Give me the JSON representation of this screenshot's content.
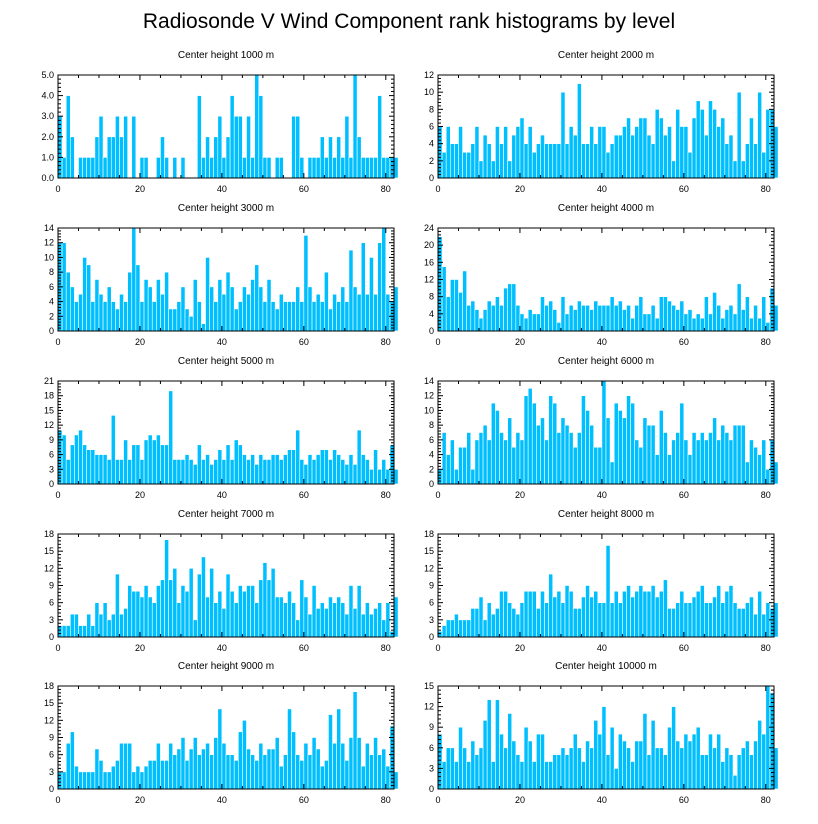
{
  "title": "Radiosonde V Wind Component rank histograms by level",
  "chart_data": [
    {
      "type": "bar",
      "title": "Center height 1000 m",
      "x": "0..82",
      "xticks": [
        0,
        20,
        40,
        60,
        80
      ],
      "xlim": [
        0,
        82
      ],
      "yticks": [
        "0.0",
        "1.0",
        "2.0",
        "3.0",
        "4.0",
        "5.0"
      ],
      "ylim": [
        0,
        5
      ],
      "values": [
        3,
        1,
        4,
        2,
        0,
        1,
        1,
        1,
        1,
        2,
        3,
        1,
        2,
        2,
        3,
        2,
        3,
        0,
        3,
        0,
        1,
        1,
        0,
        0,
        1,
        2,
        1,
        0,
        1,
        0,
        1,
        0,
        0,
        0,
        4,
        1,
        2,
        1,
        2,
        3,
        1,
        2,
        4,
        3,
        3,
        1,
        3,
        1,
        5,
        4,
        1,
        1,
        0,
        1,
        1,
        0,
        0,
        3,
        3,
        1,
        0,
        1,
        1,
        1,
        2,
        1,
        2,
        1,
        2,
        1,
        3,
        1,
        5,
        2,
        1,
        1,
        1,
        1,
        4,
        1,
        1,
        1,
        1
      ]
    },
    {
      "type": "bar",
      "title": "Center height 2000 m",
      "xticks": [
        0,
        20,
        40,
        60,
        80
      ],
      "xlim": [
        0,
        82
      ],
      "yticks": [
        "0",
        "2",
        "4",
        "6",
        "8",
        "10",
        "12"
      ],
      "ylim": [
        0,
        12
      ],
      "values": [
        6,
        3,
        6,
        4,
        4,
        6,
        3,
        3,
        4,
        6,
        2,
        5,
        4,
        2,
        6,
        4,
        6,
        2,
        5,
        6,
        7,
        4,
        6,
        3,
        4,
        5,
        4,
        4,
        4,
        4,
        10,
        4,
        6,
        5,
        11,
        4,
        4,
        6,
        4,
        6,
        6,
        3,
        4,
        5,
        5,
        6,
        7,
        5,
        6,
        7,
        7,
        5,
        4,
        8,
        7,
        5,
        6,
        2,
        8,
        6,
        6,
        3,
        7,
        9,
        8,
        5,
        9,
        8,
        6,
        7,
        4,
        5,
        2,
        10,
        2,
        4,
        7,
        4,
        10,
        3,
        8,
        8,
        6
      ]
    },
    {
      "type": "bar",
      "title": "Center height 3000 m",
      "xticks": [
        0,
        20,
        40,
        60,
        80
      ],
      "xlim": [
        0,
        82
      ],
      "yticks": [
        "0",
        "2",
        "4",
        "6",
        "8",
        "10",
        "12",
        "14"
      ],
      "ylim": [
        0,
        14
      ],
      "values": [
        12,
        12,
        8,
        6,
        4,
        5,
        10,
        9,
        4,
        7,
        5,
        4,
        6,
        4,
        3,
        5,
        4,
        8,
        14,
        9,
        4,
        7,
        6,
        4,
        7,
        5,
        8,
        3,
        3,
        4,
        6,
        3,
        2,
        7,
        4,
        1,
        10,
        6,
        4,
        7,
        5,
        8,
        6,
        3,
        4,
        6,
        5,
        7,
        9,
        6,
        4,
        7,
        4,
        3,
        5,
        4,
        4,
        4,
        6,
        4,
        13,
        6,
        4,
        5,
        4,
        8,
        3,
        5,
        4,
        6,
        4,
        11,
        6,
        5,
        12,
        5,
        10,
        5,
        12,
        14,
        5,
        4,
        6
      ]
    },
    {
      "type": "bar",
      "title": "Center height 4000 m",
      "xticks": [
        0,
        20,
        40,
        60,
        80
      ],
      "xlim": [
        0,
        82
      ],
      "yticks": [
        "0",
        "4",
        "8",
        "12",
        "16",
        "20",
        "24"
      ],
      "ylim": [
        0,
        24
      ],
      "values": [
        22,
        15,
        8,
        12,
        12,
        9,
        14,
        6,
        7,
        5,
        3,
        5,
        7,
        6,
        8,
        6,
        10,
        11,
        11,
        6,
        4,
        3,
        5,
        4,
        4,
        8,
        6,
        7,
        5,
        2,
        8,
        4,
        6,
        5,
        7,
        6,
        6,
        5,
        7,
        6,
        6,
        6,
        8,
        6,
        7,
        5,
        6,
        3,
        6,
        8,
        4,
        4,
        6,
        3,
        8,
        8,
        7,
        6,
        5,
        7,
        4,
        5,
        3,
        4,
        3,
        8,
        4,
        9,
        6,
        3,
        5,
        6,
        4,
        11,
        5,
        8,
        3,
        6,
        3,
        8,
        2,
        10,
        6
      ]
    },
    {
      "type": "bar",
      "title": "Center height 5000 m",
      "xticks": [
        0,
        20,
        40,
        60,
        80
      ],
      "xlim": [
        0,
        82
      ],
      "yticks": [
        "0",
        "3",
        "6",
        "9",
        "12",
        "15",
        "18",
        "21"
      ],
      "ylim": [
        0,
        21
      ],
      "values": [
        11,
        10,
        5,
        8,
        10,
        11,
        8,
        7,
        7,
        6,
        6,
        6,
        5,
        14,
        5,
        5,
        9,
        5,
        8,
        8,
        5,
        9,
        10,
        9,
        10,
        8,
        8,
        19,
        5,
        5,
        5,
        6,
        5,
        4,
        8,
        5,
        6,
        4,
        5,
        7,
        5,
        8,
        5,
        9,
        8,
        6,
        5,
        6,
        4,
        6,
        5,
        5,
        6,
        6,
        5,
        6,
        7,
        7,
        11,
        5,
        4,
        6,
        5,
        6,
        7,
        7,
        5,
        7,
        6,
        5,
        4,
        6,
        4,
        11,
        6,
        5,
        3,
        7,
        3,
        5,
        3,
        8,
        3
      ]
    },
    {
      "type": "bar",
      "title": "Center height 6000 m",
      "xticks": [
        0,
        20,
        40,
        60,
        80
      ],
      "xlim": [
        0,
        82
      ],
      "yticks": [
        "0",
        "2",
        "4",
        "6",
        "8",
        "10",
        "12",
        "14"
      ],
      "ylim": [
        0,
        14
      ],
      "values": [
        2,
        7,
        4,
        6,
        2,
        5,
        5,
        7,
        2,
        6,
        7,
        8,
        6,
        11,
        10,
        7,
        6,
        9,
        5,
        7,
        6,
        12,
        13,
        11,
        8,
        9,
        6,
        12,
        11,
        7,
        9,
        8,
        7,
        5,
        7,
        12,
        10,
        8,
        5,
        5,
        14,
        9,
        3,
        11,
        10,
        9,
        12,
        11,
        6,
        5,
        9,
        8,
        8,
        4,
        10,
        7,
        4,
        6,
        7,
        11,
        6,
        4,
        7,
        6,
        7,
        6,
        7,
        9,
        6,
        8,
        7,
        6,
        8,
        8,
        8,
        3,
        6,
        5,
        4,
        6,
        2,
        6,
        3
      ]
    },
    {
      "type": "bar",
      "title": "Center height 7000 m",
      "xticks": [
        0,
        20,
        40,
        60,
        80
      ],
      "xlim": [
        0,
        82
      ],
      "yticks": [
        "0",
        "3",
        "6",
        "9",
        "12",
        "15",
        "18"
      ],
      "ylim": [
        0,
        18
      ],
      "values": [
        2,
        2,
        2,
        4,
        4,
        2,
        2,
        4,
        2,
        6,
        4,
        6,
        3,
        4,
        11,
        4,
        5,
        9,
        8,
        8,
        7,
        9,
        7,
        6,
        9,
        10,
        17,
        10,
        12,
        6,
        9,
        8,
        12,
        3,
        11,
        14,
        7,
        12,
        6,
        8,
        5,
        11,
        8,
        6,
        9,
        8,
        9,
        9,
        6,
        10,
        13,
        10,
        12,
        7,
        7,
        6,
        8,
        6,
        3,
        10,
        7,
        4,
        9,
        5,
        6,
        5,
        7,
        6,
        7,
        6,
        4,
        9,
        5,
        9,
        4,
        6,
        4,
        5,
        6,
        3,
        6,
        1,
        7
      ]
    },
    {
      "type": "bar",
      "title": "Center height 8000 m",
      "xticks": [
        0,
        20,
        40,
        60,
        80
      ],
      "xlim": [
        0,
        82
      ],
      "yticks": [
        "0",
        "3",
        "6",
        "9",
        "12",
        "15",
        "18"
      ],
      "ylim": [
        0,
        18
      ],
      "values": [
        1,
        2,
        3,
        3,
        4,
        3,
        3,
        3,
        5,
        5,
        7,
        3,
        6,
        4,
        5,
        8,
        8,
        6,
        5,
        4,
        6,
        8,
        8,
        8,
        5,
        8,
        6,
        11,
        7,
        8,
        6,
        9,
        8,
        5,
        5,
        7,
        9,
        7,
        8,
        6,
        6,
        16,
        6,
        8,
        6,
        8,
        9,
        7,
        8,
        9,
        8,
        8,
        9,
        7,
        8,
        10,
        5,
        5,
        6,
        8,
        6,
        6,
        7,
        8,
        9,
        6,
        6,
        7,
        9,
        6,
        8,
        9,
        6,
        5,
        5,
        6,
        7,
        4,
        8,
        4,
        6,
        5,
        6
      ]
    },
    {
      "type": "bar",
      "title": "Center height 9000 m",
      "xticks": [
        0,
        20,
        40,
        60,
        80
      ],
      "xlim": [
        0,
        82
      ],
      "yticks": [
        "0",
        "3",
        "6",
        "9",
        "12",
        "15",
        "18"
      ],
      "ylim": [
        0,
        18
      ],
      "values": [
        3,
        3,
        8,
        10,
        4,
        3,
        3,
        3,
        3,
        7,
        5,
        3,
        3,
        4,
        5,
        8,
        8,
        8,
        3,
        4,
        3,
        4,
        5,
        5,
        8,
        5,
        5,
        8,
        6,
        7,
        9,
        5,
        7,
        9,
        6,
        7,
        8,
        6,
        9,
        14,
        8,
        6,
        6,
        5,
        10,
        12,
        7,
        6,
        5,
        8,
        6,
        7,
        7,
        9,
        4,
        6,
        14,
        10,
        6,
        5,
        8,
        6,
        9,
        7,
        4,
        5,
        13,
        8,
        14,
        8,
        5,
        9,
        17,
        9,
        4,
        8,
        6,
        9,
        6,
        7,
        4,
        11,
        3
      ]
    },
    {
      "type": "bar",
      "title": "Center height 10000 m",
      "xticks": [
        0,
        20,
        40,
        60,
        80
      ],
      "xlim": [
        0,
        82
      ],
      "yticks": [
        "0",
        "3",
        "6",
        "9",
        "12",
        "15"
      ],
      "ylim": [
        0,
        15
      ],
      "values": [
        8,
        4,
        6,
        6,
        4,
        9,
        6,
        4,
        7,
        5,
        6,
        10,
        13,
        4,
        13,
        8,
        6,
        11,
        7,
        5,
        4,
        9,
        7,
        4,
        8,
        8,
        4,
        4,
        5,
        5,
        6,
        5,
        6,
        8,
        6,
        4,
        7,
        6,
        10,
        8,
        12,
        5,
        9,
        3,
        8,
        7,
        6,
        4,
        7,
        7,
        11,
        5,
        10,
        6,
        6,
        5,
        9,
        12,
        7,
        6,
        8,
        7,
        8,
        9,
        5,
        5,
        8,
        6,
        8,
        4,
        6,
        5,
        2,
        5,
        6,
        7,
        5,
        7,
        10,
        8,
        15,
        14,
        6
      ]
    }
  ]
}
